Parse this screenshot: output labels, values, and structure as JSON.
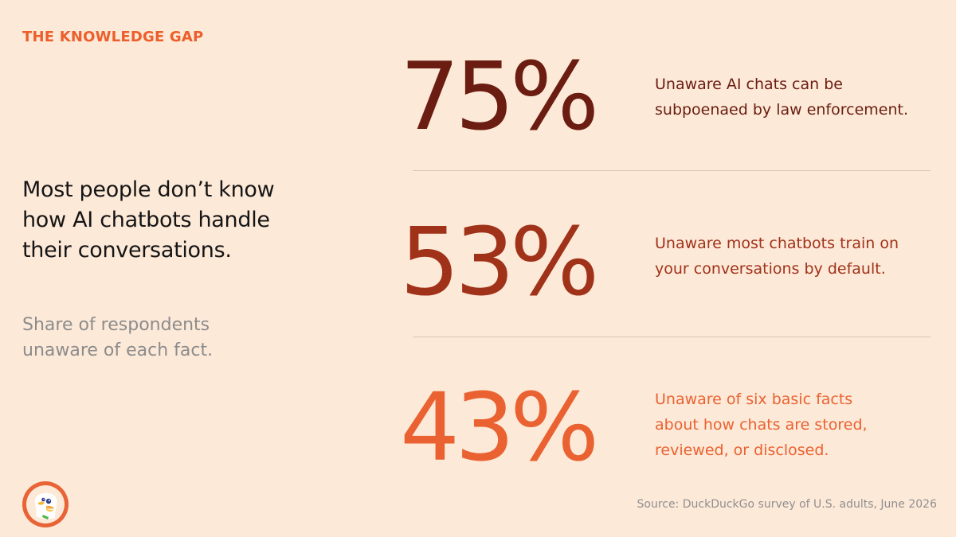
{
  "header": {
    "eyebrow": "THE KNOWLEDGE GAP"
  },
  "intro": {
    "headline": "Most people don’t know how AI chatbots handle their conversations.",
    "subhead": "Share of respondents unaware of each fact."
  },
  "stats": [
    {
      "value": "75%",
      "description_lines": [
        "Unaware AI chats can be",
        "subpoenaed by law enforcement."
      ],
      "color": "#6a1d10"
    },
    {
      "value": "53%",
      "description_lines": [
        "Unaware most chatbots train on",
        "your conversations by default."
      ],
      "color": "#a0321a"
    },
    {
      "value": "43%",
      "description_lines": [
        "Unaware of six basic facts",
        "about how chats are stored,",
        "reviewed, or disclosed."
      ],
      "color": "#ea6231"
    }
  ],
  "footer": {
    "source": "Source: DuckDuckGo survey of U.S. adults, June 2026",
    "logo": "duckduckgo-logo"
  },
  "colors": {
    "background": "#fde9d8",
    "accent": "#ec5e2a",
    "headline": "#151515",
    "subhead": "#8c8c8c",
    "divider": "#d6c7b9"
  }
}
